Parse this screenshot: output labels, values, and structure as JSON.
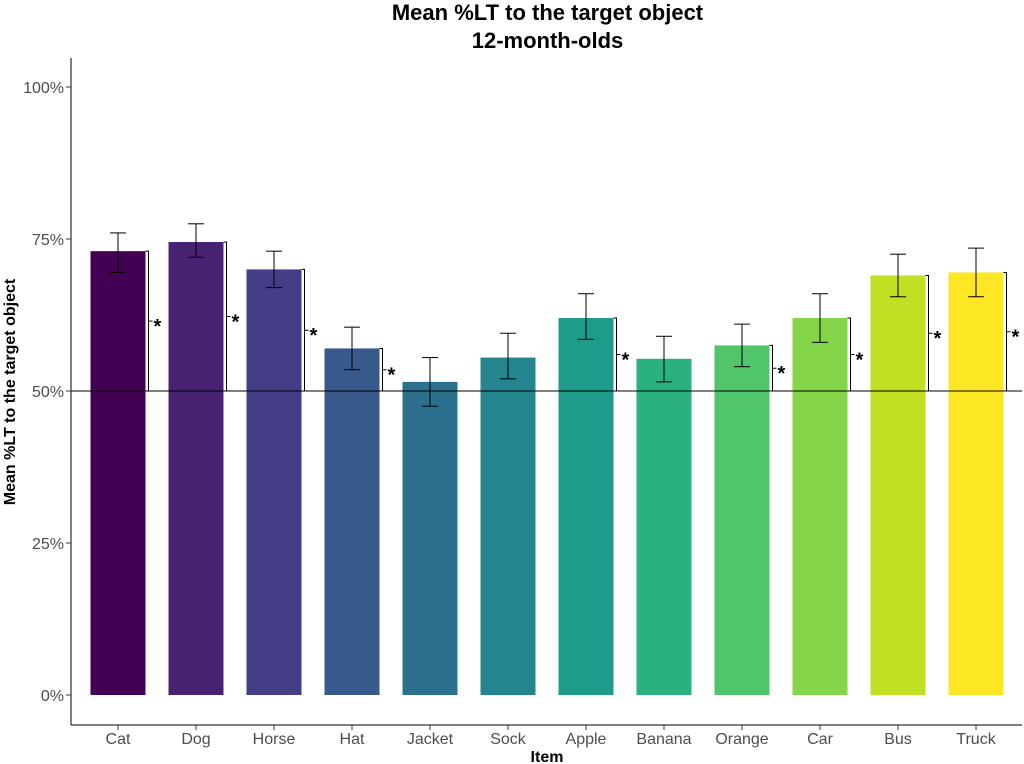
{
  "chart_data": {
    "type": "bar",
    "title": "Mean %LT to the target object",
    "subtitle": "12-month-olds",
    "xlabel": "Item",
    "ylabel": "Mean %LT to the target object",
    "ylim": [
      0,
      1
    ],
    "yticks": [
      0,
      0.25,
      0.5,
      0.75,
      1.0
    ],
    "ytick_labels": [
      "0%",
      "25%",
      "50%",
      "75%",
      "100%"
    ],
    "reference_line": 0.5,
    "categories": [
      "Cat",
      "Dog",
      "Horse",
      "Hat",
      "Jacket",
      "Sock",
      "Apple",
      "Banana",
      "Orange",
      "Car",
      "Bus",
      "Truck"
    ],
    "values": [
      0.73,
      0.745,
      0.7,
      0.57,
      0.515,
      0.555,
      0.62,
      0.553,
      0.575,
      0.62,
      0.69,
      0.695
    ],
    "error_low": [
      0.695,
      0.72,
      0.67,
      0.535,
      0.475,
      0.52,
      0.585,
      0.515,
      0.54,
      0.58,
      0.655,
      0.655
    ],
    "error_high": [
      0.76,
      0.775,
      0.73,
      0.605,
      0.555,
      0.595,
      0.66,
      0.59,
      0.61,
      0.66,
      0.725,
      0.735
    ],
    "significance": [
      true,
      true,
      true,
      true,
      false,
      false,
      true,
      false,
      true,
      true,
      true,
      true
    ],
    "significance_label": "*",
    "colors": [
      "#440154",
      "#482173",
      "#433E85",
      "#38598C",
      "#2D708E",
      "#25858E",
      "#1E9B8A",
      "#2BB07F",
      "#51C56A",
      "#85D54A",
      "#C2DF23",
      "#FDE725"
    ]
  }
}
